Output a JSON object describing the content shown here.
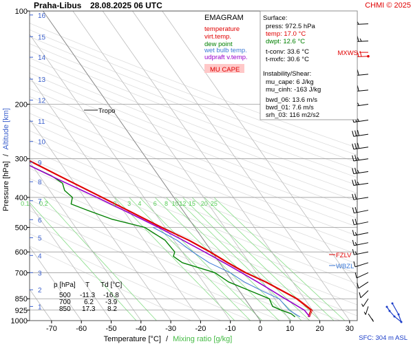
{
  "header": {
    "station": "Praha-Libus",
    "datetime": "28.08.2025 06 UTC",
    "credit": "CHMI © 2025"
  },
  "legend": {
    "title": "EMAGRAM",
    "items": [
      {
        "label": "temperature",
        "color": "#e00000"
      },
      {
        "label": "virt.temp.",
        "color": "#e00000"
      },
      {
        "label": "dew point",
        "color": "#008000"
      },
      {
        "label": "wet bulb temp.",
        "color": "#3a78d6"
      },
      {
        "label": "udpraft v.temp.",
        "color": "#9900cc"
      }
    ],
    "mu_cape_label": "MU CAPE"
  },
  "surface_box": {
    "title": "Surface:",
    "press": "press: 972.5 hPa",
    "temp": "temp: 17.0 °C",
    "dwpt": "dwpt: 12.6 °C",
    "tconv": "t-conv: 33.6 °C",
    "tmxfc": "t-mxfc: 30.6 °C",
    "instability_title": "Instability/Shear:",
    "mu_cape": "mu_cape: 6 J/kg",
    "mu_cinh": "mu_cinh: -163 J/kg",
    "bwd_06": "bwd_06: 13.6 m/s",
    "bwd_01": "bwd_01: 7.6 m/s",
    "srh_03": "srh_03: 116 m2/s2"
  },
  "levels_table": {
    "headers": [
      "p [hPa]",
      "T",
      "Td [°C]"
    ],
    "rows": [
      [
        "500",
        "-11.3",
        "-16.8"
      ],
      [
        "700",
        "6.2",
        "-3.9"
      ],
      [
        "850",
        "17.3",
        "8.2"
      ]
    ]
  },
  "annotations": {
    "tropo": "Tropo",
    "fzlv": "FZLV",
    "wbzl": "WBZL",
    "mxws": "MXWS"
  },
  "footer": {
    "xlabel_temp": "Temperature [°C]",
    "xlabel_sep": "/",
    "xlabel_mix": "Mixing ratio [g/kg]",
    "ylabel_pressure": "Pressure [hPa]",
    "ylabel_sep": "/",
    "ylabel_alt": "Altitude [km]",
    "sfc": "SFC: 304 m ASL"
  },
  "colors": {
    "temperature": "#e00000",
    "dewpoint": "#008000",
    "wetbulb": "#3a78d6",
    "parcel": "#9900cc",
    "mixing": "#88dd88",
    "isotherm": "#bbbbbb",
    "adiabat": "#dddddd",
    "altitude": "#3a5fcd",
    "wind": "#000000",
    "mxws": "#e00000",
    "grid": "#999999"
  },
  "chart_data": {
    "type": "line",
    "title": "EMAGRAM",
    "xlabel": "Temperature [°C]",
    "ylabel": "Pressure [hPa]",
    "xlim": [
      -80,
      35
    ],
    "ylim": [
      1000,
      100
    ],
    "x_ticks": [
      -70,
      -60,
      -50,
      -40,
      -30,
      -20,
      -10,
      0,
      10,
      20,
      30
    ],
    "y_ticks": [
      100,
      200,
      300,
      400,
      500,
      600,
      700,
      850,
      925,
      1000
    ],
    "altitude_ticks_km": [
      1,
      2,
      3,
      4,
      5,
      6,
      7,
      8,
      9,
      10,
      11,
      12,
      13,
      14,
      15,
      16
    ],
    "altitude_tick_pressures": [
      900,
      795,
      700,
      616,
      540,
      472,
      410,
      356,
      308,
      264,
      227,
      194,
      166,
      141,
      121,
      103
    ],
    "mixing_ratio_labels": [
      "0.1",
      "0.2",
      "2",
      "3",
      "4",
      "6",
      "8",
      "10",
      "12",
      "15",
      "20",
      "25"
    ],
    "mixing_ratio_values": [
      0.1,
      0.2,
      2,
      3,
      4,
      6,
      8,
      10,
      12,
      15,
      20,
      25
    ],
    "mixing_ratio_label_pressure": 400,
    "series": [
      {
        "name": "temperature",
        "points": [
          [
            972.5,
            17.0
          ],
          [
            925,
            19.5
          ],
          [
            900,
            18.8
          ],
          [
            850,
            17.3
          ],
          [
            800,
            14.2
          ],
          [
            750,
            10.8
          ],
          [
            700,
            6.2
          ],
          [
            650,
            2.6
          ],
          [
            600,
            -0.8
          ],
          [
            550,
            -5.2
          ],
          [
            500,
            -11.3
          ],
          [
            450,
            -17.4
          ],
          [
            400,
            -24.2
          ],
          [
            350,
            -32.0
          ],
          [
            300,
            -40.8
          ],
          [
            250,
            -50.2
          ],
          [
            215,
            -58.0
          ],
          [
            200,
            -58.4
          ],
          [
            190,
            -58.0
          ],
          [
            180,
            -59.5
          ],
          [
            170,
            -58.2
          ],
          [
            160,
            -59.0
          ],
          [
            150,
            -57.6
          ],
          [
            140,
            -58.4
          ],
          [
            130,
            -57.8
          ],
          [
            120,
            -58.6
          ],
          [
            110,
            -58.0
          ],
          [
            100,
            -59.2
          ]
        ]
      },
      {
        "name": "dew point",
        "points": [
          [
            972.5,
            12.6
          ],
          [
            950,
            12.0
          ],
          [
            925,
            9.5
          ],
          [
            900,
            7.5
          ],
          [
            850,
            8.2
          ],
          [
            800,
            3.5
          ],
          [
            750,
            -1.5
          ],
          [
            700,
            -3.9
          ],
          [
            650,
            -12.5
          ],
          [
            620,
            -14.0
          ],
          [
            600,
            -12.5
          ],
          [
            550,
            -13.0
          ],
          [
            500,
            -16.8
          ],
          [
            470,
            -26.0
          ],
          [
            440,
            -32.0
          ],
          [
            420,
            -36.0
          ],
          [
            400,
            -34.0
          ],
          [
            380,
            -35.0
          ],
          [
            360,
            -34.0
          ],
          [
            340,
            -36.0
          ],
          [
            320,
            -40.0
          ],
          [
            300,
            -44.0
          ],
          [
            280,
            -48.5
          ],
          [
            260,
            -56.0
          ],
          [
            240,
            -60.0
          ],
          [
            220,
            -62.0
          ],
          [
            200,
            -64.0
          ],
          [
            180,
            -66.5
          ],
          [
            170,
            -70.5
          ],
          [
            160,
            -73.0
          ],
          [
            150,
            -79.0
          ],
          [
            140,
            -80.0
          ]
        ]
      },
      {
        "name": "wet bulb temp.",
        "points": [
          [
            972.5,
            14.2
          ],
          [
            925,
            12.2
          ],
          [
            850,
            11.5
          ],
          [
            800,
            7.5
          ],
          [
            750,
            3.8
          ],
          [
            700,
            1.2
          ],
          [
            650,
            -3.5
          ],
          [
            600,
            -6.5
          ],
          [
            550,
            -9.0
          ],
          [
            500,
            -14.0
          ]
        ]
      },
      {
        "name": "udpraft v.temp.",
        "points": [
          [
            972.5,
            17.5
          ],
          [
            925,
            17.3
          ],
          [
            850,
            13.5
          ],
          [
            800,
            11.0
          ],
          [
            750,
            8.2
          ],
          [
            700,
            5.0
          ],
          [
            650,
            1.5
          ],
          [
            600,
            -2.5
          ],
          [
            550,
            -7.0
          ],
          [
            500,
            -12.2
          ],
          [
            450,
            -18.5
          ],
          [
            400,
            -25.8
          ],
          [
            350,
            -34.5
          ],
          [
            300,
            -44.0
          ],
          [
            250,
            -55.0
          ],
          [
            200,
            -67.0
          ],
          [
            175,
            -73.0
          ],
          [
            150,
            -80.0
          ]
        ]
      }
    ],
    "wind_barbs": [
      {
        "p": 110,
        "dir": 265,
        "spd": 28
      },
      {
        "p": 125,
        "dir": 265,
        "spd": 38
      },
      {
        "p": 140,
        "dir": 265,
        "spd": 42
      },
      {
        "p": 160,
        "dir": 260,
        "spd": 34
      },
      {
        "p": 180,
        "dir": 260,
        "spd": 30
      },
      {
        "p": 200,
        "dir": 255,
        "spd": 25
      },
      {
        "p": 225,
        "dir": 255,
        "spd": 25
      },
      {
        "p": 250,
        "dir": 255,
        "spd": 30
      },
      {
        "p": 275,
        "dir": 255,
        "spd": 30
      },
      {
        "p": 300,
        "dir": 255,
        "spd": 28
      },
      {
        "p": 330,
        "dir": 255,
        "spd": 25
      },
      {
        "p": 360,
        "dir": 255,
        "spd": 25
      },
      {
        "p": 400,
        "dir": 255,
        "spd": 20
      },
      {
        "p": 440,
        "dir": 250,
        "spd": 20
      },
      {
        "p": 480,
        "dir": 250,
        "spd": 20
      },
      {
        "p": 520,
        "dir": 250,
        "spd": 15
      },
      {
        "p": 560,
        "dir": 250,
        "spd": 15
      },
      {
        "p": 600,
        "dir": 250,
        "spd": 15
      },
      {
        "p": 650,
        "dir": 240,
        "spd": 10
      },
      {
        "p": 700,
        "dir": 230,
        "spd": 10
      },
      {
        "p": 750,
        "dir": 220,
        "spd": 10
      },
      {
        "p": 800,
        "dir": 210,
        "spd": 10
      },
      {
        "p": 850,
        "dir": 200,
        "spd": 5
      },
      {
        "p": 900,
        "dir": 190,
        "spd": 5
      },
      {
        "p": 950,
        "dir": 160,
        "spd": 5
      }
    ],
    "hodograph": [
      [
        570,
        441
      ],
      [
        579,
        457
      ],
      [
        583,
        468
      ],
      [
        573,
        460
      ],
      [
        566,
        452
      ],
      [
        562,
        446
      ]
    ],
    "tropopause_p": 209,
    "fzlv_p": 612,
    "wbzl_p": 664,
    "mxws_p": 136
  }
}
